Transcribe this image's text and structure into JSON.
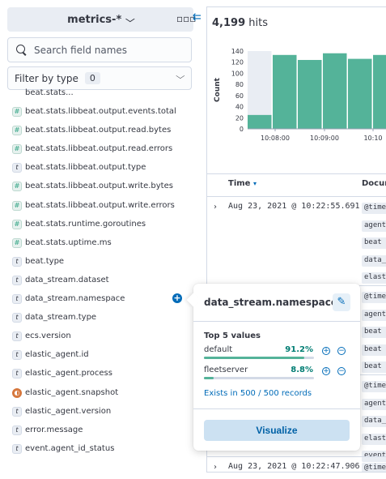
{
  "sidebar": {
    "index_pattern": "metrics-*",
    "search_placeholder": "Search field names",
    "filter_label": "Filter by type",
    "filter_count": "0",
    "partial_top_field": "beat.stats...",
    "fields": [
      {
        "name": "beat.stats.libbeat.output.events.total",
        "type": "#"
      },
      {
        "name": "beat.stats.libbeat.output.read.bytes",
        "type": "#"
      },
      {
        "name": "beat.stats.libbeat.output.read.errors",
        "type": "#"
      },
      {
        "name": "beat.stats.libbeat.output.type",
        "type": "t"
      },
      {
        "name": "beat.stats.libbeat.output.write.bytes",
        "type": "#"
      },
      {
        "name": "beat.stats.libbeat.output.write.errors",
        "type": "#"
      },
      {
        "name": "beat.stats.runtime.goroutines",
        "type": "#"
      },
      {
        "name": "beat.stats.uptime.ms",
        "type": "#"
      },
      {
        "name": "beat.type",
        "type": "t"
      },
      {
        "name": "data_stream.dataset",
        "type": "t"
      },
      {
        "name": "data_stream.namespace",
        "type": "t"
      },
      {
        "name": "data_stream.type",
        "type": "t"
      },
      {
        "name": "ecs.version",
        "type": "t"
      },
      {
        "name": "elastic_agent.id",
        "type": "t"
      },
      {
        "name": "elastic_agent.process",
        "type": "t"
      },
      {
        "name": "elastic_agent.snapshot",
        "type": "snapshot"
      },
      {
        "name": "elastic_agent.version",
        "type": "t"
      },
      {
        "name": "error.message",
        "type": "t"
      },
      {
        "name": "event.agent_id_status",
        "type": "t"
      }
    ]
  },
  "main": {
    "hits_count": "4,199",
    "hits_label": "hits",
    "columns": {
      "time": "Time",
      "document": "Document"
    },
    "rows": [
      {
        "time": "Aug 23, 2021 @ 10:22:55.691",
        "tags": [
          "@timestamp",
          "agent",
          "beat",
          "data_stream",
          "elastic_agent"
        ]
      },
      {
        "time": "",
        "tags": [
          "@timestamp",
          "agent",
          "beat",
          "beat",
          "beat"
        ]
      },
      {
        "time": "",
        "tags": [
          "@timestamp",
          "agent",
          "data_stream",
          "elastic_agent",
          "event"
        ]
      },
      {
        "time": "Aug 23, 2021 @ 10:22:47.906",
        "tags": [
          "@timestamp"
        ]
      }
    ]
  },
  "chart_data": {
    "type": "bar",
    "title": "",
    "xlabel": "",
    "ylabel": "Count",
    "ylim": [
      0,
      140
    ],
    "yticks": [
      0,
      20,
      40,
      60,
      80,
      100,
      120,
      140
    ],
    "xticks": [
      "10:08:00",
      "10:09:00",
      "10:10"
    ],
    "values": [
      25,
      133,
      124,
      136,
      126,
      133
    ],
    "partial_bucket_index": 0,
    "colors": {
      "bar": "#54b399",
      "partial_bg": "#e9edf3"
    }
  },
  "popover": {
    "title": "data_stream.namespace",
    "subtitle": "Top 5 values",
    "values": [
      {
        "label": "default",
        "percent_text": "91.2%",
        "percent": 91.2
      },
      {
        "label": "fleetserver",
        "percent_text": "8.8%",
        "percent": 8.8
      }
    ],
    "exists_text": "Exists in 500 / 500 records",
    "visualize_label": "Visualize"
  }
}
